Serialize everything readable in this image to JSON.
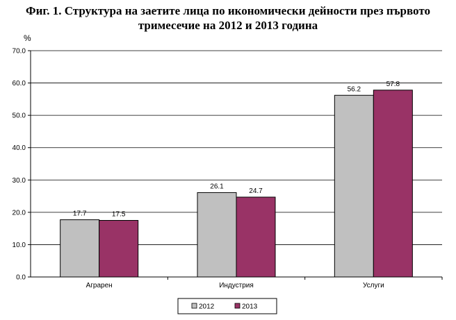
{
  "title_line1": "Фиг. 1. Структура на заетите лица по икономически дейности през първото",
  "title_line2": "тримесечие на 2012 и 2013 година",
  "chart_data": {
    "type": "bar",
    "title": "Фиг. 1. Структура на заетите лица по икономически дейности през първото тримесечие на 2012 и 2013 година",
    "ylabel": "%",
    "xlabel": "",
    "ylim": [
      0,
      70
    ],
    "yticks": [
      "0.0",
      "10.0",
      "20.0",
      "30.0",
      "40.0",
      "50.0",
      "60.0",
      "70.0"
    ],
    "grid": true,
    "legend_position": "bottom",
    "categories": [
      "Аграрен",
      "Индустрия",
      "Услуги"
    ],
    "series": [
      {
        "name": "2012",
        "values": [
          17.7,
          26.1,
          56.2
        ],
        "labels": [
          "17.7",
          "26.1",
          "56.2"
        ],
        "color": "#c0c0c0"
      },
      {
        "name": "2013",
        "values": [
          17.5,
          24.7,
          57.8
        ],
        "labels": [
          "17.5",
          "24.7",
          "57.8"
        ],
        "color": "#993366"
      }
    ]
  }
}
